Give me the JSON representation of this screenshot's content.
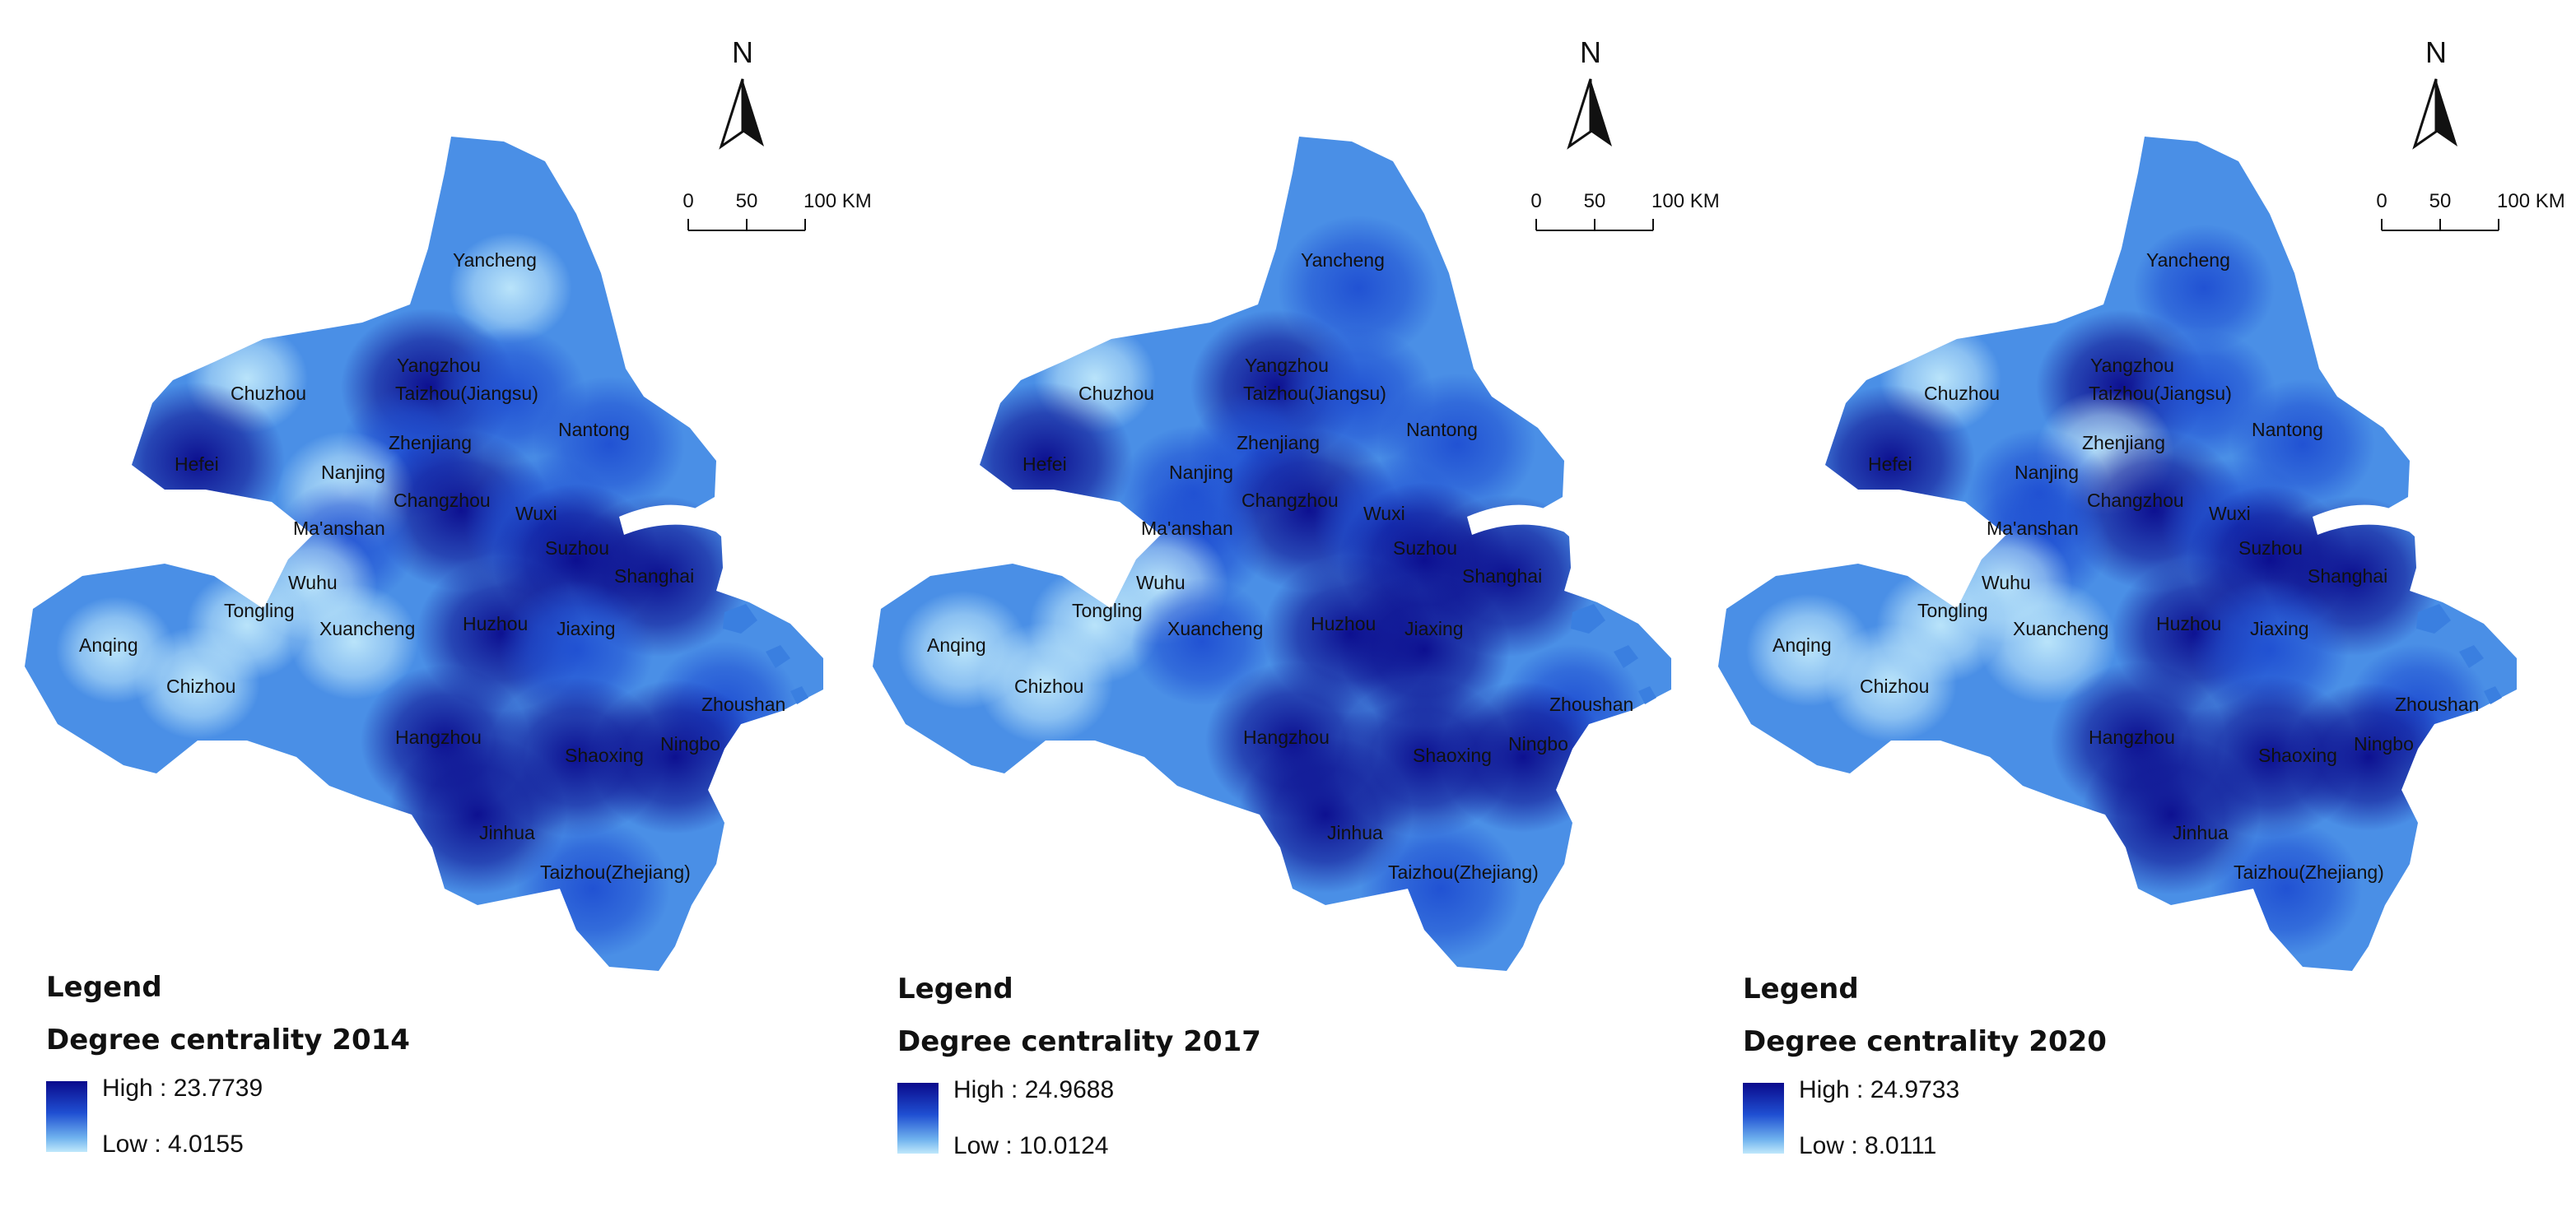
{
  "north_arrow_label": "N",
  "scale_bar": {
    "ticks": [
      "0",
      "50",
      "100 KM"
    ]
  },
  "maps": [
    {
      "legend_heading": "Legend",
      "title": "Degree centrality 2014",
      "high_label": "High : 23.7739",
      "low_label": "Low : 4.0155"
    },
    {
      "legend_heading": "Legend",
      "title": "Degree centrality 2017",
      "high_label": "High : 24.9688",
      "low_label": "Low : 10.0124"
    },
    {
      "legend_heading": "Legend",
      "title": "Degree centrality 2020",
      "high_label": "High : 24.9733",
      "low_label": "Low : 8.0111"
    }
  ],
  "cities": [
    "Yancheng",
    "Yangzhou",
    "Taizhou(Jiangsu)",
    "Chuzhou",
    "Nantong",
    "Zhenjiang",
    "Hefei",
    "Nanjing",
    "Changzhou",
    "Wuxi",
    "Ma'anshan",
    "Suzhou",
    "Shanghai",
    "Wuhu",
    "Tongling",
    "Xuancheng",
    "Huzhou",
    "Jiaxing",
    "Anqing",
    "Chizhou",
    "Zhoushan",
    "Hangzhou",
    "Shaoxing",
    "Ningbo",
    "Jinhua",
    "Taizhou(Zhejiang)"
  ],
  "colors": {
    "high": "#0a0a8c",
    "mid": "#1f4fd2",
    "low": "#bfe8fb"
  },
  "panel_intensity": [
    [
      0.12,
      0.9,
      0.55,
      0.1,
      0.55,
      0.45,
      0.9,
      0.35,
      0.95,
      0.65,
      0.4,
      0.8,
      0.98,
      0.2,
      0.1,
      0.2,
      0.85,
      0.6,
      0.05,
      0.15,
      0.5,
      0.8,
      0.95,
      0.85,
      0.95,
      0.6
    ],
    [
      0.7,
      0.85,
      0.55,
      0.1,
      0.65,
      0.4,
      0.9,
      0.55,
      0.98,
      0.6,
      0.45,
      0.85,
      0.98,
      0.3,
      0.25,
      0.4,
      0.9,
      0.85,
      0.25,
      0.3,
      0.4,
      0.9,
      0.95,
      0.8,
      0.9,
      0.7
    ],
    [
      0.4,
      0.85,
      0.45,
      0.1,
      0.45,
      0.35,
      0.8,
      0.45,
      0.95,
      0.55,
      0.4,
      0.75,
      0.95,
      0.25,
      0.2,
      0.35,
      0.8,
      0.65,
      0.15,
      0.25,
      0.4,
      0.9,
      0.98,
      0.75,
      0.95,
      0.55
    ]
  ]
}
